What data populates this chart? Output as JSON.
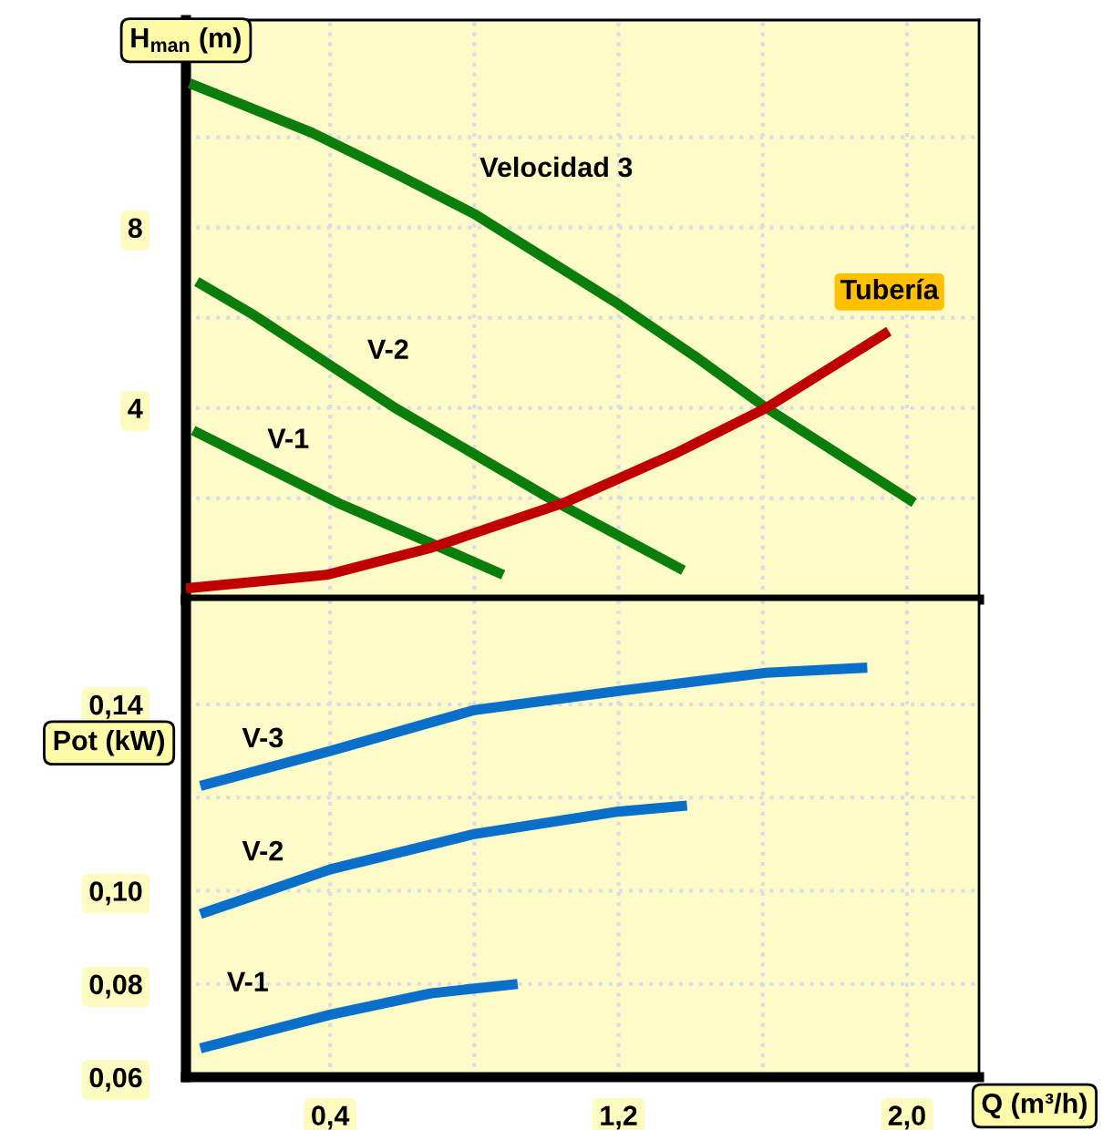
{
  "chart_data": [
    {
      "type": "line",
      "ylabel": "H$_{man}$ (m)",
      "xlim": [
        0,
        2.2
      ],
      "ylim": [
        -0.25,
        12.6
      ],
      "xticks": [
        {
          "value": 0.4,
          "label": null
        },
        {
          "value": 0.8,
          "label": null
        },
        {
          "value": 1.2,
          "label": null
        },
        {
          "value": 1.6,
          "label": null
        },
        {
          "value": 2.0,
          "label": null
        }
      ],
      "yticks": [
        {
          "value": 2,
          "label": null
        },
        4,
        {
          "value": 6,
          "label": null
        },
        8,
        {
          "value": 10,
          "label": null
        }
      ],
      "tick_labels": "y",
      "grid": true,
      "legend": false,
      "marker": "none",
      "line_style": "solid",
      "series": [
        {
          "name": "Velocidad 3",
          "color": "#0a7d0a",
          "x": [
            0.01,
            0.35,
            0.58,
            0.8,
            1.2,
            1.42,
            1.61,
            2.02
          ],
          "values": [
            11.2,
            10.1,
            9.2,
            8.3,
            6.3,
            5.1,
            4.0,
            1.9
          ]
        },
        {
          "name": "V-2",
          "color": "#0a7d0a",
          "x": [
            0.03,
            0.18,
            0.58,
            1.03,
            1.38
          ],
          "values": [
            6.8,
            6.1,
            4.0,
            1.9,
            0.4
          ]
        },
        {
          "name": "V-1",
          "color": "#0a7d0a",
          "x": [
            0.02,
            0.42,
            0.68,
            0.88
          ],
          "values": [
            3.5,
            1.9,
            1.0,
            0.3
          ]
        },
        {
          "name": "Tubería",
          "color": "#c00000",
          "x": [
            0.0,
            0.39,
            0.68,
            1.05,
            1.36,
            1.61,
            1.95
          ],
          "values": [
            0.0,
            0.3,
            0.9,
            1.9,
            3.0,
            4.0,
            5.7
          ]
        }
      ]
    },
    {
      "type": "line",
      "ylabel": "Pot (kW)",
      "xlabel": "Q (m³/h)",
      "xlim": [
        0,
        2.2
      ],
      "ylim": [
        0.06,
        0.1625
      ],
      "xticks": [
        {
          "value": 0.4,
          "label": "0,4"
        },
        {
          "value": 0.8,
          "label": null
        },
        {
          "value": 1.2,
          "label": "1,2"
        },
        {
          "value": 1.6,
          "label": null
        },
        {
          "value": 2.0,
          "label": "2,0"
        }
      ],
      "yticks": [
        {
          "value": 0.06,
          "label": "0,06"
        },
        {
          "value": 0.08,
          "label": "0,08"
        },
        {
          "value": 0.1,
          "label": "0,10"
        },
        {
          "value": 0.12,
          "label": null
        },
        {
          "value": 0.14,
          "label": "0,14"
        }
      ],
      "grid": true,
      "legend": false,
      "marker": "none",
      "line_style": "solid",
      "series": [
        {
          "name": "V-3",
          "color": "#0a6fc8",
          "x": [
            0.04,
            0.4,
            0.8,
            1.2,
            1.61,
            1.89
          ],
          "values": [
            0.1225,
            0.13,
            0.1388,
            0.1429,
            0.1468,
            0.1479
          ]
        },
        {
          "name": "V-2",
          "color": "#0a6fc8",
          "x": [
            0.04,
            0.4,
            0.8,
            1.2,
            1.39
          ],
          "values": [
            0.095,
            0.1046,
            0.1122,
            0.117,
            0.1183
          ]
        },
        {
          "name": "V-1",
          "color": "#0a6fc8",
          "x": [
            0.04,
            0.4,
            0.68,
            0.92
          ],
          "values": [
            0.0662,
            0.0734,
            0.078,
            0.08
          ]
        }
      ]
    }
  ]
}
